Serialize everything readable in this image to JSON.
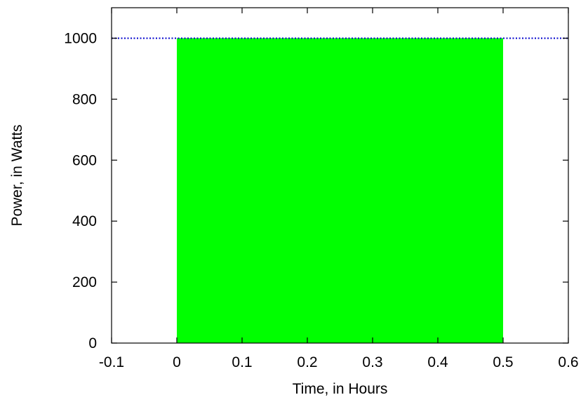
{
  "chart_data": {
    "type": "area",
    "title": "",
    "xlabel": "Time, in Hours",
    "ylabel": "Power, in Watts",
    "xlim": [
      -0.1,
      0.6
    ],
    "ylim": [
      0,
      1100
    ],
    "x_ticks": [
      "-0.1",
      "0",
      "0.1",
      "0.2",
      "0.3",
      "0.4",
      "0.5",
      "0.6"
    ],
    "y_ticks": [
      "0",
      "200",
      "400",
      "600",
      "800",
      "1000"
    ],
    "grid": false,
    "legend": "none",
    "series": [
      {
        "kind": "filled-area",
        "color": "#00ff00",
        "x_start": 0,
        "x_end": 0.5,
        "value": 1000
      },
      {
        "kind": "dotted-line",
        "color": "#0000cc",
        "value": 1000
      }
    ]
  }
}
